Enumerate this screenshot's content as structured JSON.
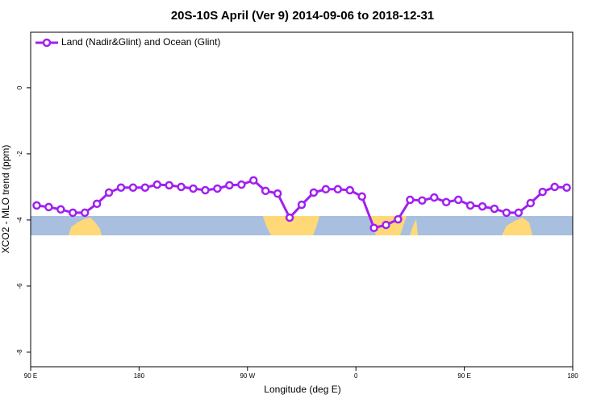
{
  "chart_data": {
    "type": "line",
    "title": "20S-10S April (Ver 9)   2014-09-06 to 2018-12-31",
    "xlabel": "Longitude (deg E)",
    "ylabel": "XCO2 - MLO trend (ppm)",
    "x": [
      95,
      105,
      115,
      125,
      135,
      145,
      155,
      165,
      175,
      185,
      195,
      205,
      215,
      225,
      235,
      245,
      255,
      265,
      275,
      285,
      295,
      305,
      315,
      325,
      335,
      345,
      355,
      365,
      375,
      385,
      395,
      405,
      415,
      425,
      435,
      445,
      455,
      465,
      475,
      485,
      495,
      505,
      515,
      525,
      535
    ],
    "series": [
      {
        "name": "Land (Nadir&Glint) and Ocean (Glint)",
        "color": "#a020f0",
        "values": [
          -3.56,
          -3.61,
          -3.68,
          -3.78,
          -3.78,
          -3.51,
          -3.17,
          -3.02,
          -3.02,
          -3.02,
          -2.93,
          -2.95,
          -3.0,
          -3.05,
          -3.1,
          -3.05,
          -2.95,
          -2.93,
          -2.8,
          -3.12,
          -3.2,
          -3.93,
          -3.54,
          -3.17,
          -3.07,
          -3.07,
          -3.1,
          -3.29,
          -4.24,
          -4.15,
          -3.98,
          -3.39,
          -3.41,
          -3.32,
          -3.46,
          -3.39,
          -3.56,
          -3.59,
          -3.66,
          -3.78,
          -3.78,
          -3.49,
          -3.15,
          -3.0,
          -3.02
        ]
      }
    ],
    "xlim": [
      90,
      540
    ],
    "xticks": [
      {
        "value": 90,
        "label": "90 E"
      },
      180,
      {
        "value": 270,
        "label": "90 W"
      },
      {
        "value": 360,
        "label": "0"
      },
      {
        "value": 450,
        "label": "90 E"
      },
      {
        "value": 540,
        "label": "180"
      }
    ],
    "ylim": [
      -8.44,
      1.68
    ],
    "yticks": [
      0,
      -2,
      -4,
      -6,
      -8
    ],
    "legend": "topleft"
  }
}
